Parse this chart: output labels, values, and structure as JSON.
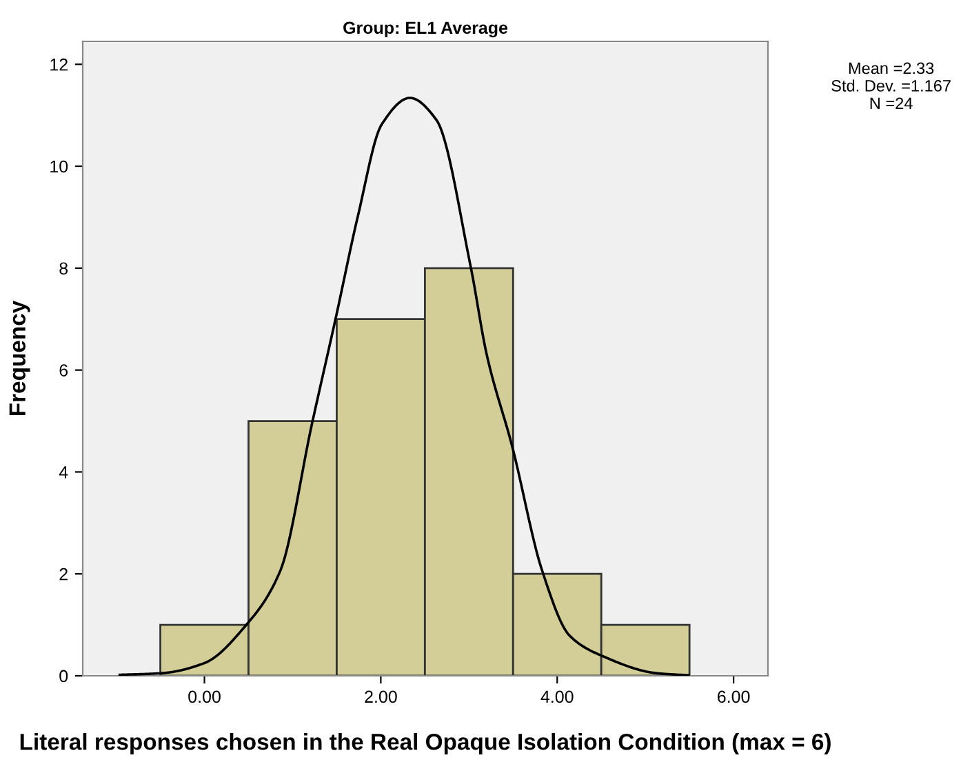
{
  "chart_data": {
    "type": "histogram",
    "title": "Group: EL1 Average",
    "xlabel": "Literal responses chosen in the Real Opaque Isolation Condition (max = 6)",
    "ylabel": "Frequency",
    "series": [
      {
        "bins": [
          -0.5,
          0.5,
          1.5,
          2.5,
          3.5,
          4.5,
          5.5
        ],
        "values": [
          1,
          5,
          7,
          8,
          2,
          1
        ],
        "color": "#d3ce98"
      },
      {
        "type": "line",
        "color": "#000000",
        "x": [
          -0.96,
          -0.49,
          0,
          0.47,
          0.86,
          1.22,
          1.49,
          1.74,
          2.01,
          2.33,
          2.63,
          3.02,
          3.2,
          3.49,
          3.83,
          4.14,
          4.51,
          5.13,
          5.49
        ],
        "values": [
          0.02,
          0.05,
          0.25,
          0.99,
          2.06,
          4.95,
          7.03,
          9.02,
          10.82,
          11.34,
          10.91,
          8.02,
          6.31,
          4.5,
          2.06,
          0.79,
          0.39,
          0.05,
          0.01
        ]
      }
    ],
    "xlim": [
      -1.38,
      6.39
    ],
    "ylim": [
      0,
      12.45
    ],
    "xticks": [
      {
        "value": 0,
        "label": "0.00"
      },
      {
        "value": 2,
        "label": "2.00"
      },
      {
        "value": 4,
        "label": "4.00"
      },
      {
        "value": 6,
        "label": "6.00"
      }
    ],
    "yticks": [
      0,
      2,
      4,
      6,
      8,
      10,
      12
    ],
    "annotations": [
      "Mean =2.33\nStd. Dev. =1.167\nN =24"
    ]
  }
}
